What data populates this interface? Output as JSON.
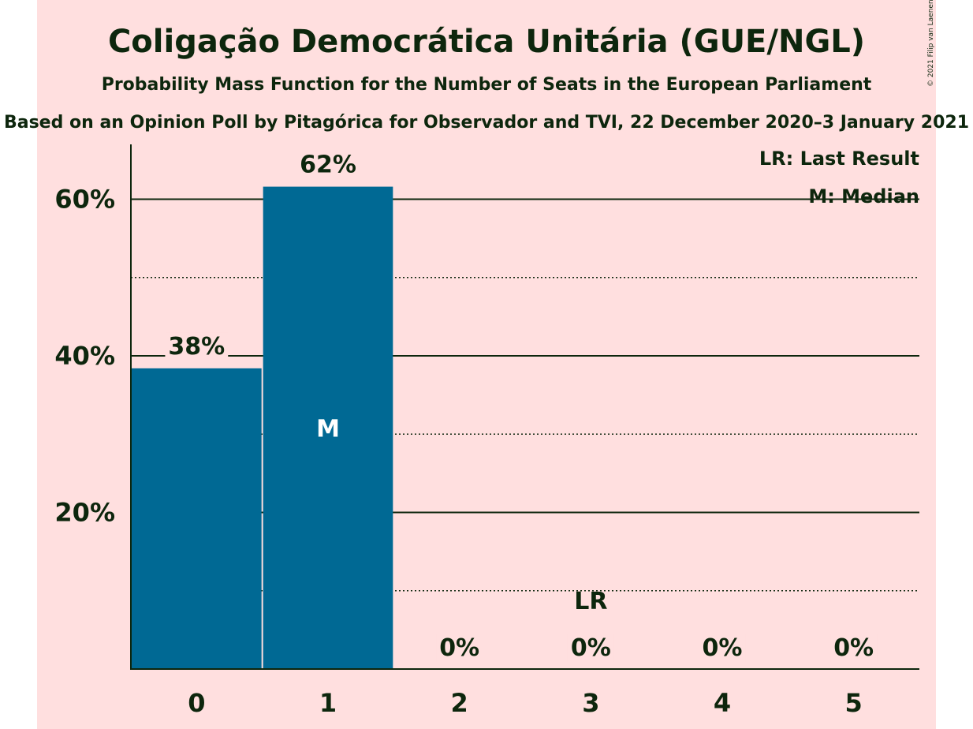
{
  "chart_data": {
    "type": "bar",
    "title": "Coligação Democrática Unitária (GUE/NGL)",
    "subtitle": "Probability Mass Function for the Number of Seats in the European Parliament",
    "subtitle2": "Based on an Opinion Poll by Pitagórica for Observador and TVI, 22 December 2020–3 January 2021",
    "copyright": "© 2021 Filip van Laenen",
    "categories": [
      "0",
      "1",
      "2",
      "3",
      "4",
      "5"
    ],
    "values": [
      38.4,
      61.6,
      0,
      0,
      0,
      0
    ],
    "value_labels": [
      "38%",
      "62%",
      "0%",
      "0%",
      "0%",
      "0%"
    ],
    "ylim": [
      0,
      67
    ],
    "yticks_major": [
      20,
      40,
      60
    ],
    "ytick_labels": [
      "20%",
      "40%",
      "60%"
    ],
    "yticks_minor": [
      10,
      30,
      50
    ],
    "median_index": 1,
    "median_marker": "M",
    "last_result_index": 3,
    "last_result_marker": "LR",
    "legend": [
      "LR: Last Result",
      "M: Median"
    ],
    "legend_position": "top-right",
    "colors": {
      "background": "#ffdfdf",
      "bar": "#006994",
      "text": "#0d260d"
    }
  }
}
